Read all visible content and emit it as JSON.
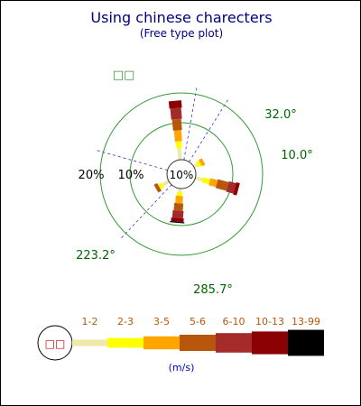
{
  "chart_data": {
    "type": "windrose",
    "title": "Using chinese charecters",
    "subtitle": "(Free type plot)",
    "center_label": "10%",
    "ring_labels": [
      "10%",
      "20%"
    ],
    "ring_values": [
      10,
      20
    ],
    "direction_labels": [
      {
        "angle": 32.0,
        "text": "32.0°"
      },
      {
        "angle": 10.0,
        "text": "10.0°"
      },
      {
        "angle": 223.2,
        "text": "223.2°"
      },
      {
        "angle": 285.7,
        "text": "285.7°"
      }
    ],
    "legend_mark": "□□",
    "calm_mark": "□□",
    "units": "(m/s)",
    "bins": [
      "1-2",
      "2-3",
      "3-5",
      "5-6",
      "6-10",
      "10-13",
      "13-99"
    ],
    "colors": {
      "bins": [
        "#eee8aa",
        "#ffff00",
        "#ffa500",
        "#b8570b",
        "#a52a2a",
        "#8b0000",
        "#000000"
      ],
      "grid": "#339933",
      "spoke": "#3333cc",
      "direction_label": "#006600",
      "title": "#000080",
      "bin_label": "#b8570b",
      "units_label": "#0000cc",
      "mark": "#cc0000"
    },
    "series": [
      {
        "direction": 105,
        "values": [
          2,
          2,
          2,
          3,
          2,
          1,
          0
        ]
      },
      {
        "direction": 355,
        "values": [
          3,
          2,
          3,
          3,
          3,
          2,
          0
        ]
      },
      {
        "direction": 60,
        "values": [
          1,
          1,
          1,
          0,
          0,
          0,
          0
        ]
      },
      {
        "direction": 185,
        "values": [
          1,
          1,
          2,
          2,
          2,
          1,
          0.3
        ]
      },
      {
        "direction": 240,
        "values": [
          2,
          1,
          0,
          1,
          0,
          0,
          0
        ]
      }
    ]
  }
}
